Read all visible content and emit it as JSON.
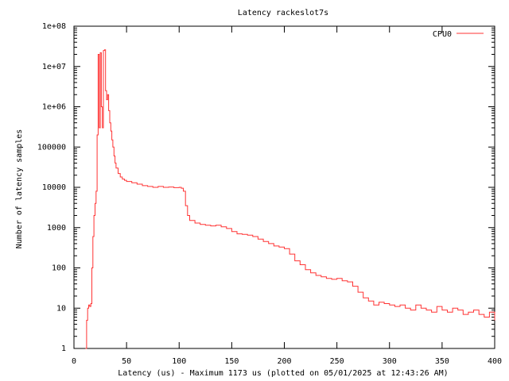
{
  "chart_data": {
    "type": "line",
    "title": "Latency rackeslot7s",
    "xlabel": "Latency (us) - Maximum 1173 us (plotted on 05/01/2025 at 12:43:26 AM)",
    "ylabel": "Number of latency samples",
    "xlim": [
      0,
      400
    ],
    "ylim": [
      1,
      100000000
    ],
    "yscale": "log",
    "grid": false,
    "legend_position": "top-right",
    "x_ticks": [
      0,
      50,
      100,
      150,
      200,
      250,
      300,
      350,
      400
    ],
    "x_tick_labels": [
      "0",
      "50",
      "100",
      "150",
      "200",
      "250",
      "300",
      "350",
      "400"
    ],
    "y_ticks": [
      1,
      10,
      100,
      1000,
      10000,
      100000,
      1000000,
      10000000,
      100000000
    ],
    "y_tick_labels": [
      "1",
      "10",
      "100",
      "1000",
      "10000",
      "100000",
      "1e+06",
      "1e+07",
      "1e+08"
    ],
    "series": [
      {
        "name": "CPU0",
        "color": "#ff3333",
        "points": [
          [
            11,
            1
          ],
          [
            12,
            5
          ],
          [
            13,
            10
          ],
          [
            14,
            12
          ],
          [
            15,
            11
          ],
          [
            16,
            13
          ],
          [
            17,
            100
          ],
          [
            18,
            600
          ],
          [
            19,
            2000
          ],
          [
            20,
            4000
          ],
          [
            21,
            8000
          ],
          [
            22,
            200000
          ],
          [
            23,
            20000000
          ],
          [
            24,
            300000
          ],
          [
            25,
            22000000
          ],
          [
            26,
            1000000
          ],
          [
            27,
            300000
          ],
          [
            28,
            25000000
          ],
          [
            29,
            26000000
          ],
          [
            30,
            2500000
          ],
          [
            31,
            1500000
          ],
          [
            32,
            2000000
          ],
          [
            33,
            800000
          ],
          [
            34,
            400000
          ],
          [
            35,
            250000
          ],
          [
            36,
            150000
          ],
          [
            37,
            100000
          ],
          [
            38,
            60000
          ],
          [
            39,
            40000
          ],
          [
            40,
            30000
          ],
          [
            42,
            22000
          ],
          [
            44,
            18000
          ],
          [
            46,
            16000
          ],
          [
            48,
            15000
          ],
          [
            50,
            14000
          ],
          [
            55,
            13000
          ],
          [
            60,
            12000
          ],
          [
            65,
            11000
          ],
          [
            70,
            10500
          ],
          [
            75,
            10000
          ],
          [
            80,
            10500
          ],
          [
            85,
            10000
          ],
          [
            90,
            10200
          ],
          [
            95,
            9800
          ],
          [
            100,
            10000
          ],
          [
            102,
            9500
          ],
          [
            104,
            8000
          ],
          [
            106,
            3500
          ],
          [
            108,
            2000
          ],
          [
            110,
            1500
          ],
          [
            115,
            1300
          ],
          [
            120,
            1200
          ],
          [
            125,
            1150
          ],
          [
            130,
            1100
          ],
          [
            135,
            1150
          ],
          [
            140,
            1050
          ],
          [
            145,
            950
          ],
          [
            150,
            800
          ],
          [
            155,
            700
          ],
          [
            160,
            680
          ],
          [
            165,
            650
          ],
          [
            170,
            600
          ],
          [
            175,
            520
          ],
          [
            180,
            450
          ],
          [
            185,
            400
          ],
          [
            190,
            350
          ],
          [
            195,
            330
          ],
          [
            200,
            300
          ],
          [
            205,
            220
          ],
          [
            210,
            150
          ],
          [
            215,
            120
          ],
          [
            220,
            90
          ],
          [
            225,
            75
          ],
          [
            230,
            65
          ],
          [
            235,
            60
          ],
          [
            240,
            55
          ],
          [
            245,
            52
          ],
          [
            250,
            55
          ],
          [
            255,
            48
          ],
          [
            260,
            45
          ],
          [
            265,
            35
          ],
          [
            270,
            25
          ],
          [
            275,
            18
          ],
          [
            280,
            15
          ],
          [
            285,
            12
          ],
          [
            290,
            14
          ],
          [
            295,
            13
          ],
          [
            300,
            12
          ],
          [
            305,
            11
          ],
          [
            310,
            12
          ],
          [
            315,
            10
          ],
          [
            320,
            9
          ],
          [
            325,
            12
          ],
          [
            330,
            10
          ],
          [
            335,
            9
          ],
          [
            340,
            8
          ],
          [
            345,
            11
          ],
          [
            350,
            9
          ],
          [
            355,
            8
          ],
          [
            360,
            10
          ],
          [
            365,
            9
          ],
          [
            370,
            7
          ],
          [
            375,
            8
          ],
          [
            380,
            9
          ],
          [
            385,
            7
          ],
          [
            390,
            6
          ],
          [
            395,
            8
          ],
          [
            400,
            5
          ]
        ]
      }
    ]
  }
}
